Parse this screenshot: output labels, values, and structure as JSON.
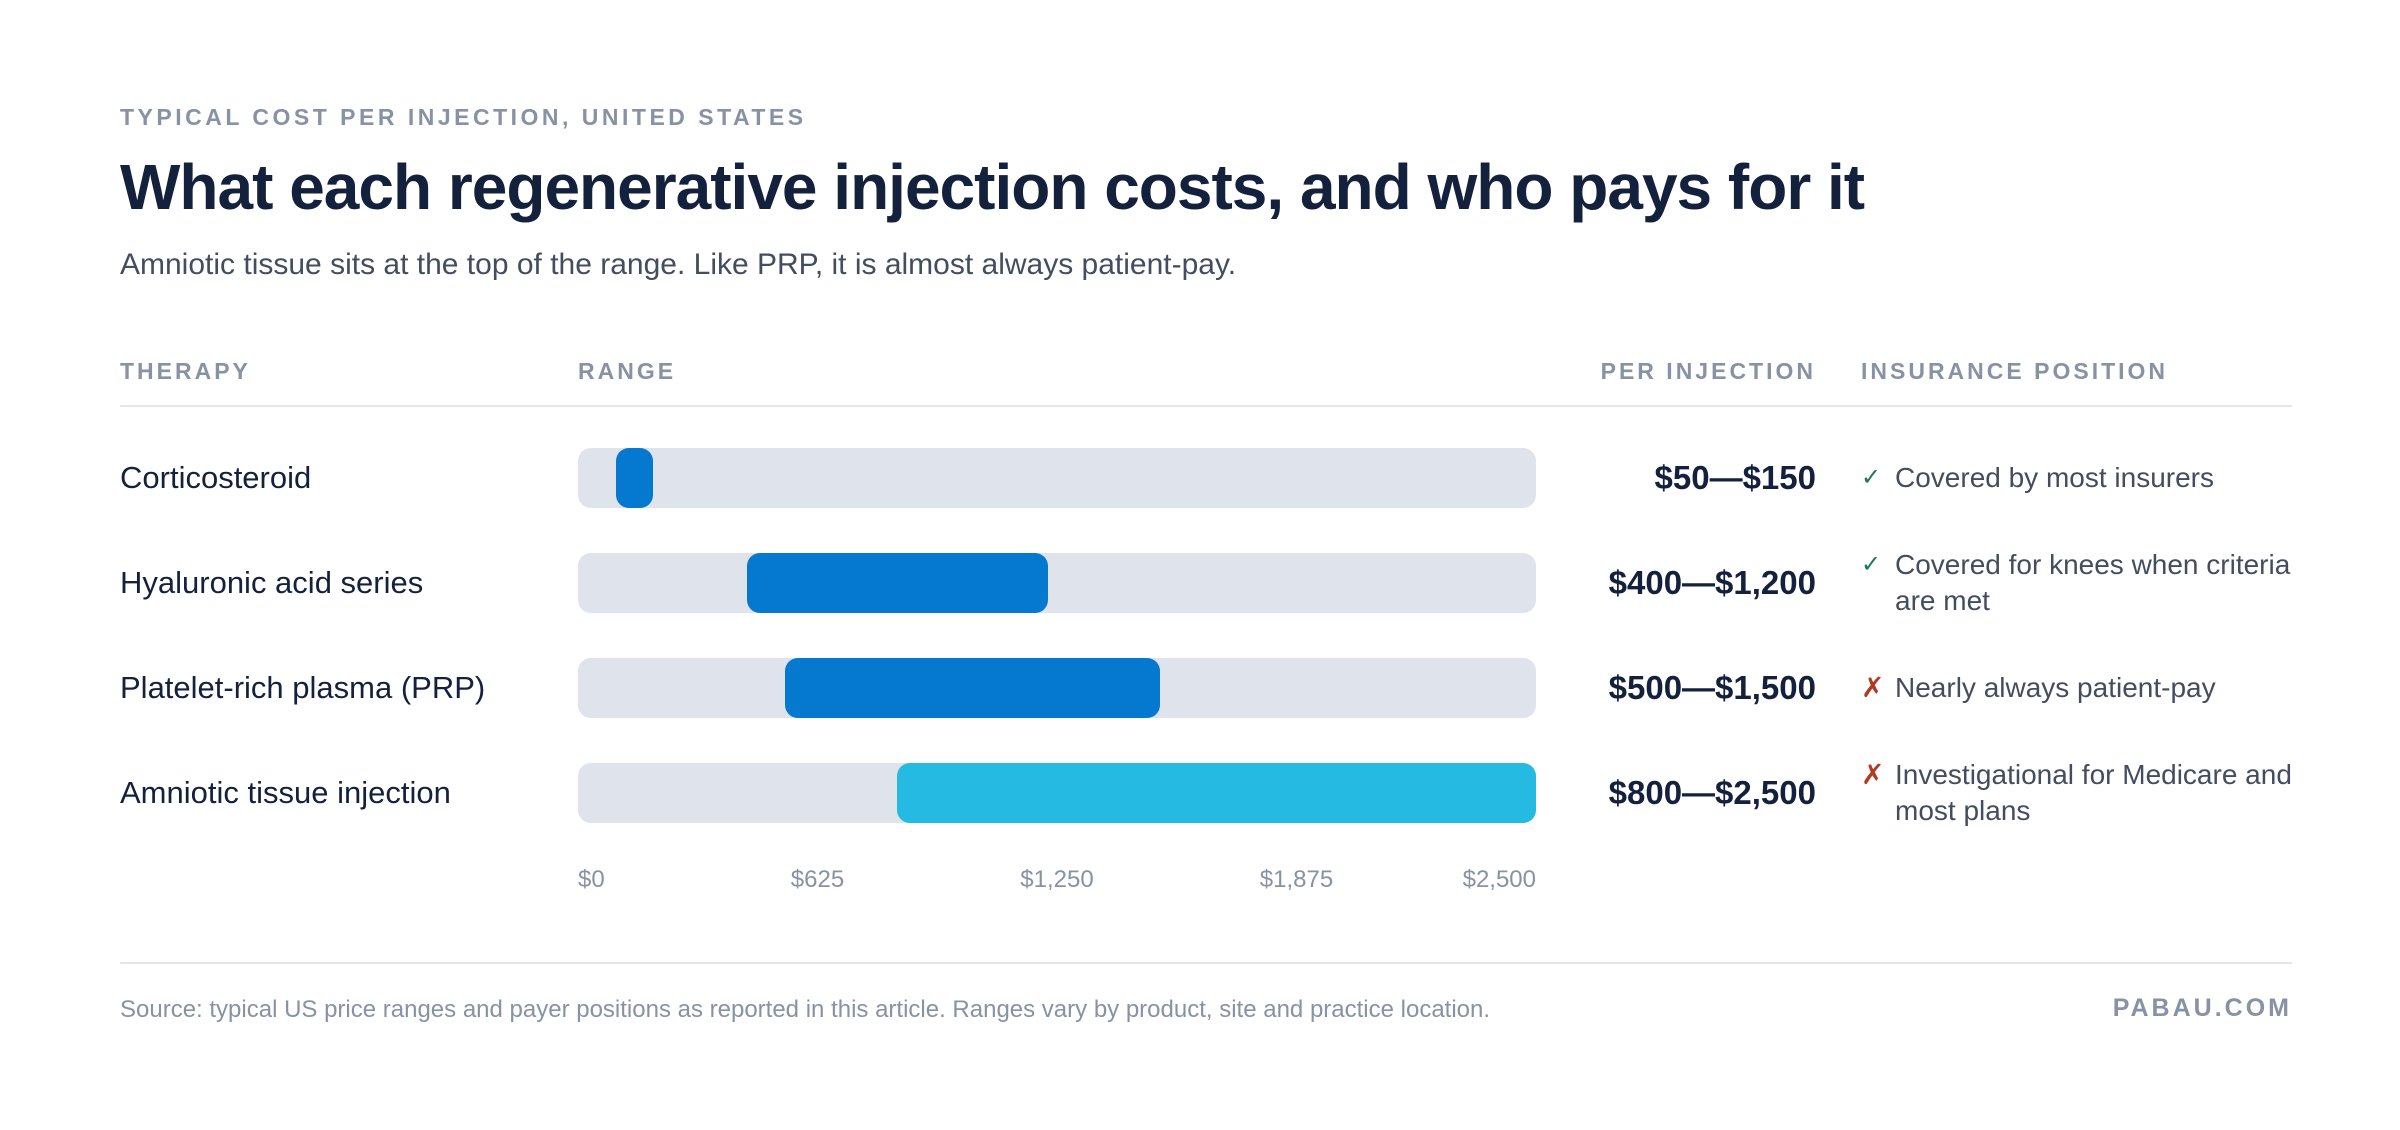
{
  "eyebrow": "TYPICAL COST PER INJECTION, UNITED STATES",
  "title": "What each regenerative injection costs, and who pays for it",
  "subtitle": "Amniotic tissue sits at the top of the range. Like PRP, it is almost always patient-pay.",
  "columns": {
    "therapy": "THERAPY",
    "range": "RANGE",
    "per_injection": "PER INJECTION",
    "insurance": "INSURANCE POSITION"
  },
  "colors": {
    "bar_primary": "#0579d0",
    "bar_highlight": "#24bae1",
    "track": "#dfe3ec",
    "covered": "#1d7a56",
    "not_covered": "#b23a22"
  },
  "chart_data": {
    "type": "bar",
    "orientation": "horizontal-range",
    "xlim": [
      0,
      2500
    ],
    "x_ticks": [
      "$0",
      "$625",
      "$1,250",
      "$1,875",
      "$2,500"
    ],
    "x_tick_values": [
      0,
      625,
      1250,
      1875,
      2500
    ],
    "rows": [
      {
        "therapy": "Corticosteroid",
        "low": 50,
        "high": 150,
        "label": "$50—$150",
        "insurance_icon": "check-icon",
        "insurance_status": "covered",
        "insurance": "Covered by most insurers",
        "highlight": false
      },
      {
        "therapy": "Hyaluronic acid series",
        "low": 400,
        "high": 1200,
        "label": "$400—$1,200",
        "insurance_icon": "check-icon",
        "insurance_status": "covered",
        "insurance": "Covered for knees when criteria are met",
        "highlight": false
      },
      {
        "therapy": "Platelet-rich plasma (PRP)",
        "low": 500,
        "high": 1500,
        "label": "$500—$1,500",
        "insurance_icon": "cross-icon",
        "insurance_status": "not-covered",
        "insurance": "Nearly always patient-pay",
        "highlight": false
      },
      {
        "therapy": "Amniotic tissue injection",
        "low": 800,
        "high": 2500,
        "label": "$800—$2,500",
        "insurance_icon": "cross-icon",
        "insurance_status": "not-covered",
        "insurance": "Investigational for Medicare and most plans",
        "highlight": true
      }
    ]
  },
  "footer": {
    "source": "Source: typical US price ranges and payer positions as reported in this article. Ranges vary by product, site and practice location.",
    "brand": "PABAU.COM"
  }
}
